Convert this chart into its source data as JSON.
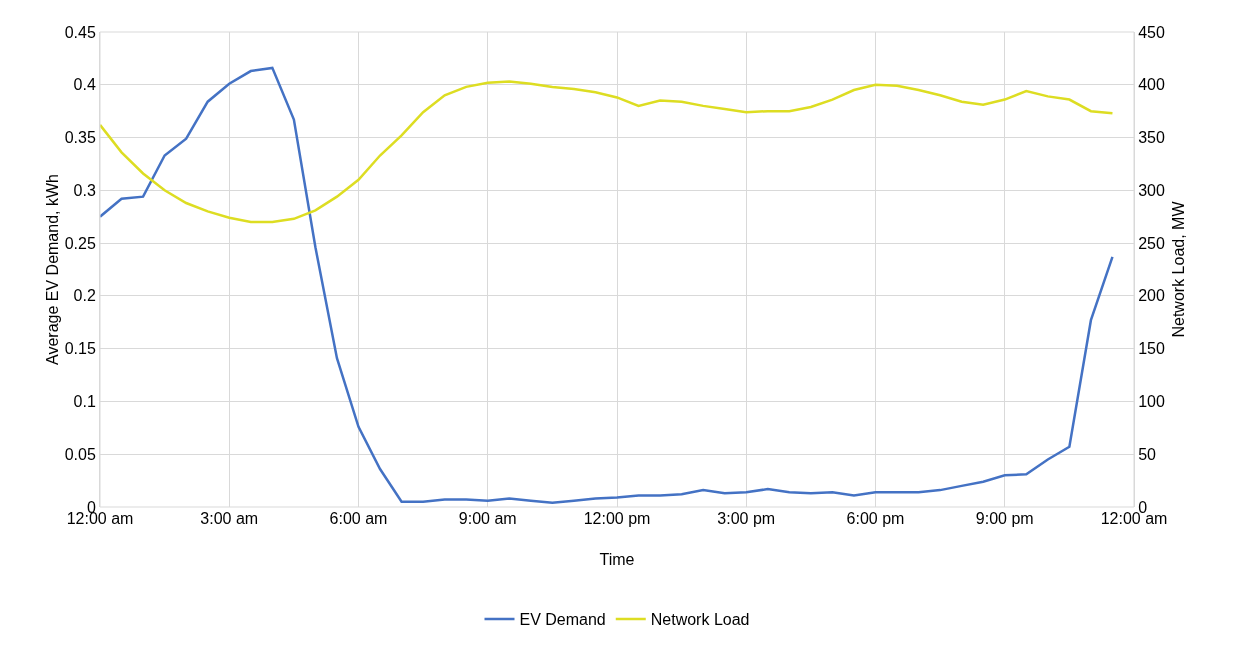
{
  "chart_data": {
    "type": "line",
    "xlabel": "Time",
    "ylabel": "Average EV Demand, kWh",
    "y2label": "Network Load, MW",
    "x": [
      0,
      0.5,
      1,
      1.5,
      2,
      2.5,
      3,
      3.5,
      4,
      4.5,
      5,
      5.5,
      6,
      6.5,
      7,
      7.5,
      8,
      8.5,
      9,
      9.5,
      10,
      10.5,
      11,
      11.5,
      12,
      12.5,
      13,
      13.5,
      14,
      14.5,
      15,
      15.5,
      16,
      16.5,
      17,
      17.5,
      18,
      18.5,
      19,
      19.5,
      20,
      20.5,
      21,
      21.5,
      22,
      22.5,
      23,
      23.5
    ],
    "series": [
      {
        "name": "EV Demand",
        "color": "#4472c4",
        "values": [
          0.275,
          0.292,
          0.294,
          0.333,
          0.349,
          0.384,
          0.401,
          0.413,
          0.416,
          0.367,
          0.246,
          0.141,
          0.076,
          0.036,
          0.005,
          0.005,
          0.007,
          0.007,
          0.006,
          0.008,
          0.006,
          0.004,
          0.006,
          0.008,
          0.009,
          0.011,
          0.011,
          0.012,
          0.016,
          0.013,
          0.014,
          0.017,
          0.014,
          0.013,
          0.014,
          0.011,
          0.014,
          0.014,
          0.014,
          0.016,
          0.02,
          0.024,
          0.03,
          0.031,
          0.045,
          0.057,
          0.177,
          0.237
        ]
      },
      {
        "name": "Network Load",
        "color": "#dddd22",
        "axis": "y2",
        "values": [
          362,
          336,
          316,
          300,
          288,
          280,
          274,
          270,
          270,
          273,
          281,
          294,
          310,
          333,
          352,
          374,
          390,
          398,
          402,
          403,
          401,
          398,
          396,
          393,
          388,
          380,
          385,
          384,
          380,
          377,
          374,
          375,
          375,
          379,
          386,
          395,
          400,
          399,
          395,
          390,
          384,
          381,
          386,
          394,
          389,
          386,
          375,
          373
        ]
      }
    ],
    "xlim": [
      0,
      24
    ],
    "xticks": [
      {
        "value": 0,
        "label": "12:00 am"
      },
      {
        "value": 3,
        "label": "3:00 am"
      },
      {
        "value": 6,
        "label": "6:00 am"
      },
      {
        "value": 9,
        "label": "9:00 am"
      },
      {
        "value": 12,
        "label": "12:00 pm"
      },
      {
        "value": 15,
        "label": "3:00 pm"
      },
      {
        "value": 18,
        "label": "6:00 pm"
      },
      {
        "value": 21,
        "label": "9:00 pm"
      },
      {
        "value": 24,
        "label": "12:00 am"
      }
    ],
    "ylim": [
      0,
      0.45
    ],
    "yticks": [
      0,
      0.05,
      0.1,
      0.15,
      0.2,
      0.25,
      0.3,
      0.35,
      0.4,
      0.45
    ],
    "y2lim": [
      0,
      450
    ],
    "y2ticks": [
      0,
      50,
      100,
      150,
      200,
      250,
      300,
      350,
      400,
      450
    ],
    "grid": true,
    "legend": "bottom",
    "marker": "none",
    "line_style": "solid"
  }
}
